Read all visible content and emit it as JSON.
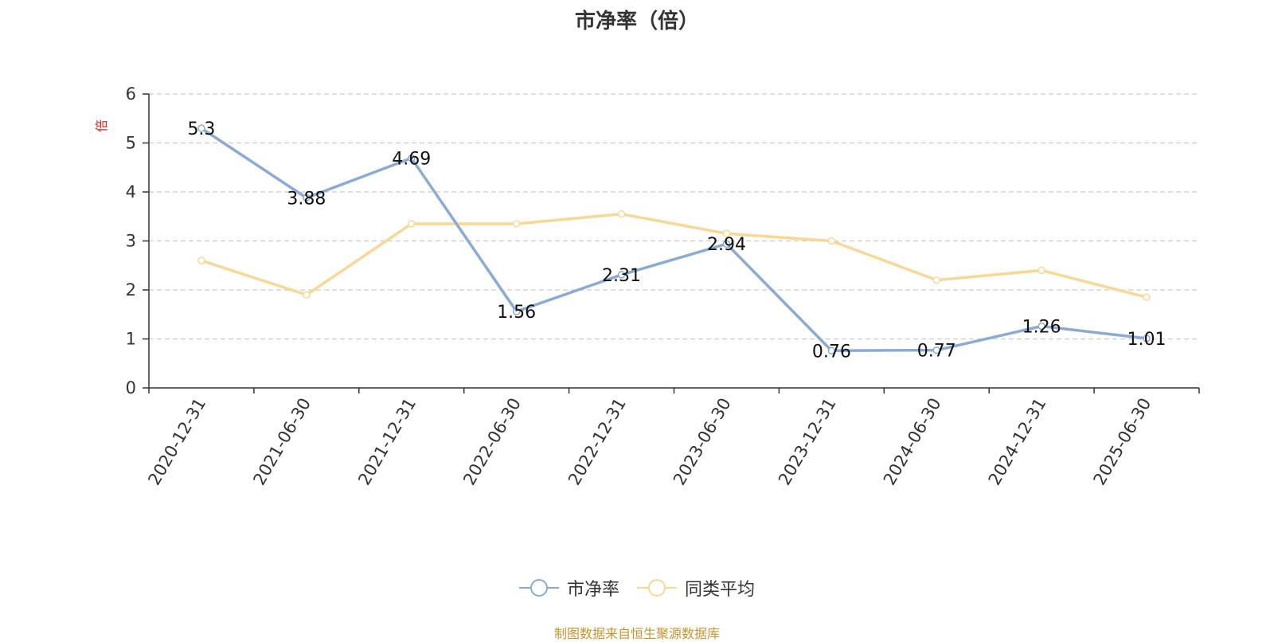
{
  "chart_data": {
    "type": "line",
    "title": "市净率（倍）",
    "ylabel": "倍",
    "xlabel": "",
    "categories": [
      "2020-12-31",
      "2021-06-30",
      "2021-12-31",
      "2022-06-30",
      "2022-12-31",
      "2023-06-30",
      "2023-12-31",
      "2024-06-30",
      "2024-12-31",
      "2025-06-30"
    ],
    "ylim": [
      0,
      6
    ],
    "yticks": [
      "0",
      "1",
      "2",
      "3",
      "4",
      "5",
      "6"
    ],
    "grid": true,
    "legend_position": "bottom",
    "series": [
      {
        "name": "市净率",
        "color": "#8aabd6",
        "values": [
          5.3,
          3.88,
          4.69,
          1.56,
          2.31,
          2.94,
          0.76,
          0.77,
          1.26,
          1.01
        ],
        "labels": [
          "5.3",
          "3.88",
          "4.69",
          "1.56",
          "2.31",
          "2.94",
          "0.76",
          "0.77",
          "1.26",
          "1.01"
        ]
      },
      {
        "name": "同类平均",
        "color": "#f9d896",
        "values": [
          2.6,
          1.9,
          3.35,
          3.35,
          3.55,
          3.15,
          3.0,
          2.2,
          2.4,
          1.85
        ]
      }
    ],
    "source": "制图数据来自恒生聚源数据库",
    "ylabel_color": "#e02020",
    "source_color": "#c8952c"
  }
}
